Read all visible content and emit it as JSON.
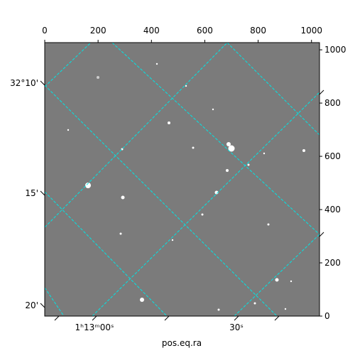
{
  "chart_data": {
    "type": "image",
    "xlabel": "pos.eq.ra",
    "xlim": [
      0,
      1030
    ],
    "xticks": [
      0,
      200,
      400,
      600,
      800,
      1000
    ],
    "ylim": [
      0,
      1027
    ],
    "y2ticks": [
      0,
      200,
      400,
      600,
      800,
      1000
    ],
    "ra_ticks": [
      "1ʰ13ᵐ00ˢ",
      "30ˢ"
    ],
    "dec_ticks": [
      "32°10'",
      "15'",
      "20'"
    ],
    "grid_color": "#00e5e5"
  }
}
